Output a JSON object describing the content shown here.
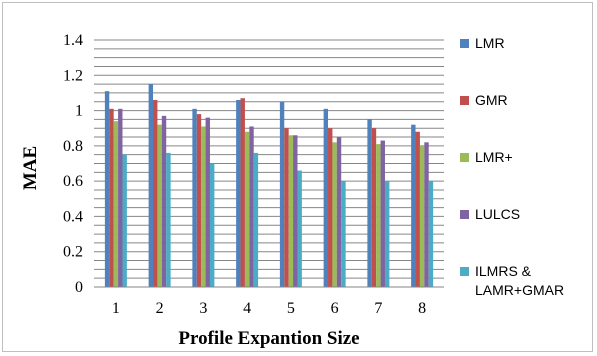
{
  "chart_data": {
    "type": "bar",
    "categories": [
      "1",
      "2",
      "3",
      "4",
      "5",
      "6",
      "7",
      "8"
    ],
    "series": [
      {
        "name": "LMR",
        "color": "#4f81bd",
        "values": [
          1.11,
          1.15,
          1.01,
          1.06,
          1.05,
          1.01,
          0.95,
          0.92
        ]
      },
      {
        "name": "GMR",
        "color": "#c0504d",
        "values": [
          1.01,
          1.06,
          0.98,
          1.07,
          0.9,
          0.9,
          0.9,
          0.88
        ]
      },
      {
        "name": "LMR+",
        "color": "#9bbb59",
        "values": [
          0.94,
          0.92,
          0.91,
          0.88,
          0.86,
          0.82,
          0.81,
          0.8
        ]
      },
      {
        "name": "LULCS",
        "color": "#8064a2",
        "values": [
          1.01,
          0.97,
          0.96,
          0.91,
          0.86,
          0.85,
          0.83,
          0.82
        ]
      },
      {
        "name": "ILMRS & LAMR+GMAR",
        "color": "#4bacc6",
        "values": [
          0.75,
          0.76,
          0.7,
          0.76,
          0.66,
          0.6,
          0.6,
          0.6
        ]
      }
    ],
    "yticks": [
      "0",
      "0.2",
      "0.4",
      "0.6",
      "0.8",
      "1",
      "1.2",
      "1.4"
    ],
    "ylim": [
      0,
      1.4
    ],
    "ylabel": "MAE",
    "xlabel": "Profile Expantion Size",
    "grid": true,
    "grid_step": 0.05,
    "legend_position": "right"
  }
}
